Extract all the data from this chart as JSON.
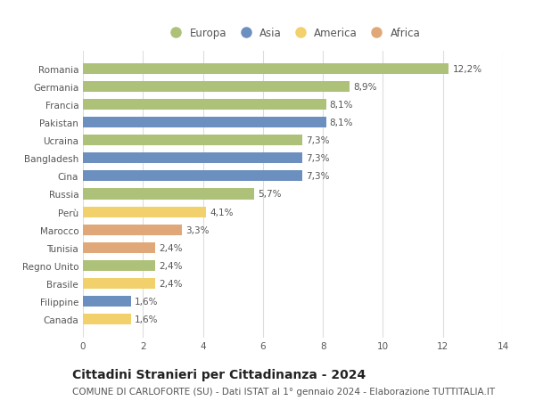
{
  "countries": [
    "Romania",
    "Germania",
    "Francia",
    "Pakistan",
    "Ucraina",
    "Bangladesh",
    "Cina",
    "Russia",
    "Perù",
    "Marocco",
    "Tunisia",
    "Regno Unito",
    "Brasile",
    "Filippine",
    "Canada"
  ],
  "values": [
    12.2,
    8.9,
    8.1,
    8.1,
    7.3,
    7.3,
    7.3,
    5.7,
    4.1,
    3.3,
    2.4,
    2.4,
    2.4,
    1.6,
    1.6
  ],
  "labels": [
    "12,2%",
    "8,9%",
    "8,1%",
    "8,1%",
    "7,3%",
    "7,3%",
    "7,3%",
    "5,7%",
    "4,1%",
    "3,3%",
    "2,4%",
    "2,4%",
    "2,4%",
    "1,6%",
    "1,6%"
  ],
  "continents": [
    "Europa",
    "Europa",
    "Europa",
    "Asia",
    "Europa",
    "Asia",
    "Asia",
    "Europa",
    "America",
    "Africa",
    "Africa",
    "Europa",
    "America",
    "Asia",
    "America"
  ],
  "continent_colors": {
    "Europa": "#adc178",
    "Asia": "#6b8fbf",
    "America": "#f2d06b",
    "Africa": "#e0a878"
  },
  "legend_order": [
    "Europa",
    "Asia",
    "America",
    "Africa"
  ],
  "title": "Cittadini Stranieri per Cittadinanza - 2024",
  "subtitle": "COMUNE DI CARLOFORTE (SU) - Dati ISTAT al 1° gennaio 2024 - Elaborazione TUTTITALIA.IT",
  "xlim": [
    0,
    14
  ],
  "xticks": [
    0,
    2,
    4,
    6,
    8,
    10,
    12,
    14
  ],
  "background_color": "#ffffff",
  "bar_background": "#ffffff",
  "grid_color": "#dddddd",
  "title_fontsize": 10,
  "subtitle_fontsize": 7.5,
  "label_fontsize": 7.5,
  "tick_fontsize": 7.5,
  "legend_fontsize": 8.5
}
